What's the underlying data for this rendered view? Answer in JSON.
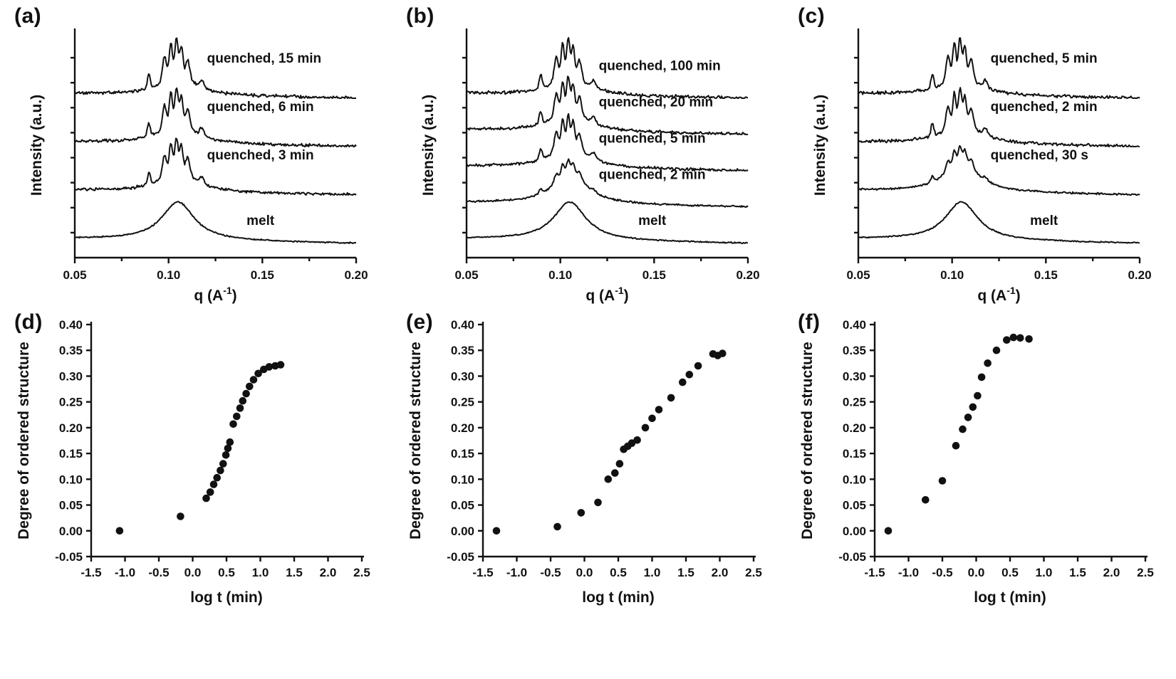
{
  "colors": {
    "foreground": "#111111",
    "background": "#ffffff"
  },
  "chart_data": [
    {
      "type": "line",
      "panel": "(a)",
      "panel_id": "a",
      "xlabel": "q (A^-1)",
      "xlabel_parts": [
        "q (A",
        "-1",
        ")"
      ],
      "ylabel": "Intensity (a.u.)",
      "xlim": [
        0.05,
        0.2
      ],
      "x_ticks": [
        "0.05",
        "0.10",
        "0.15",
        "0.20"
      ],
      "peak_center_q": 0.105,
      "series": [
        {
          "name": "quenched, 15 min",
          "profile": "sharp-peaks",
          "sharpness": 1.0
        },
        {
          "name": "quenched, 6 min",
          "profile": "sharp-peaks",
          "sharpness": 0.92
        },
        {
          "name": "quenched, 3 min",
          "profile": "sharp-peaks",
          "sharpness": 0.85
        },
        {
          "name": "melt",
          "profile": "broad-peak",
          "sharpness": 0
        }
      ]
    },
    {
      "type": "line",
      "panel": "(b)",
      "panel_id": "b",
      "xlabel": "q (A^-1)",
      "xlabel_parts": [
        "q (A",
        "-1",
        ")"
      ],
      "ylabel": "Intensity (a.u.)",
      "xlim": [
        0.05,
        0.2
      ],
      "x_ticks": [
        "0.05",
        "0.10",
        "0.15",
        "0.20"
      ],
      "peak_center_q": 0.105,
      "series": [
        {
          "name": "quenched, 100 min",
          "profile": "sharp-peaks",
          "sharpness": 1.0
        },
        {
          "name": "quenched, 20 min",
          "profile": "sharp-peaks",
          "sharpness": 0.9
        },
        {
          "name": "quenched, 5 min",
          "profile": "sharp-peaks",
          "sharpness": 0.78
        },
        {
          "name": "quenched, 2 min",
          "profile": "weak-peaks",
          "sharpness": 0.32
        },
        {
          "name": "melt",
          "profile": "broad-peak",
          "sharpness": 0
        }
      ]
    },
    {
      "type": "line",
      "panel": "(c)",
      "panel_id": "c",
      "xlabel": "q (A^-1)",
      "xlabel_parts": [
        "q (A",
        "-1",
        ")"
      ],
      "ylabel": "Intensity (a.u.)",
      "xlim": [
        0.05,
        0.2
      ],
      "x_ticks": [
        "0.05",
        "0.10",
        "0.15",
        "0.20"
      ],
      "peak_center_q": 0.105,
      "series": [
        {
          "name": "quenched, 5 min",
          "profile": "sharp-peaks",
          "sharpness": 1.0
        },
        {
          "name": "quenched, 2 min",
          "profile": "sharp-peaks",
          "sharpness": 0.9
        },
        {
          "name": "quenched, 30 s",
          "profile": "weak-peaks",
          "sharpness": 0.42
        },
        {
          "name": "melt",
          "profile": "broad-peak",
          "sharpness": 0
        }
      ]
    },
    {
      "type": "scatter",
      "panel": "(d)",
      "panel_id": "d",
      "xlabel": "log t (min)",
      "ylabel": "Degree of ordered structure",
      "xlim": [
        -1.5,
        2.5
      ],
      "ylim": [
        -0.05,
        0.4
      ],
      "x_ticks": [
        "-1.5",
        "-1.0",
        "-0.5",
        "0.0",
        "0.5",
        "1.0",
        "1.5",
        "2.0",
        "2.5"
      ],
      "y_ticks": [
        "-0.05",
        "0.00",
        "0.05",
        "0.10",
        "0.15",
        "0.20",
        "0.25",
        "0.30",
        "0.35",
        "0.40"
      ],
      "x": [
        -1.08,
        -0.18,
        0.2,
        0.26,
        0.31,
        0.36,
        0.41,
        0.45,
        0.49,
        0.52,
        0.55,
        0.6,
        0.65,
        0.7,
        0.74,
        0.79,
        0.84,
        0.9,
        0.97,
        1.05,
        1.13,
        1.22,
        1.3
      ],
      "y": [
        0.0,
        0.028,
        0.063,
        0.075,
        0.09,
        0.103,
        0.117,
        0.13,
        0.147,
        0.16,
        0.172,
        0.207,
        0.222,
        0.238,
        0.252,
        0.266,
        0.28,
        0.293,
        0.305,
        0.313,
        0.318,
        0.32,
        0.322
      ]
    },
    {
      "type": "scatter",
      "panel": "(e)",
      "panel_id": "e",
      "xlabel": "log t (min)",
      "ylabel": "Degree of ordered structure",
      "xlim": [
        -1.5,
        2.5
      ],
      "ylim": [
        -0.05,
        0.4
      ],
      "x_ticks": [
        "-1.5",
        "-1.0",
        "-0.5",
        "0.0",
        "0.5",
        "1.0",
        "1.5",
        "2.0",
        "2.5"
      ],
      "y_ticks": [
        "-0.05",
        "0.00",
        "0.05",
        "0.10",
        "0.15",
        "0.20",
        "0.25",
        "0.30",
        "0.35",
        "0.40"
      ],
      "x": [
        -1.3,
        -0.4,
        -0.05,
        0.2,
        0.35,
        0.45,
        0.52,
        0.58,
        0.64,
        0.7,
        0.78,
        0.9,
        1.0,
        1.1,
        1.28,
        1.45,
        1.55,
        1.68,
        1.9,
        1.97,
        2.04
      ],
      "y": [
        0.0,
        0.008,
        0.035,
        0.055,
        0.1,
        0.112,
        0.13,
        0.158,
        0.164,
        0.17,
        0.176,
        0.2,
        0.218,
        0.235,
        0.258,
        0.288,
        0.303,
        0.32,
        0.343,
        0.34,
        0.344
      ]
    },
    {
      "type": "scatter",
      "panel": "(f)",
      "panel_id": "f",
      "xlabel": "log t (min)",
      "ylabel": "Degree of ordered structure",
      "xlim": [
        -1.5,
        2.5
      ],
      "ylim": [
        -0.05,
        0.4
      ],
      "x_ticks": [
        "-1.5",
        "-1.0",
        "-0.5",
        "0.0",
        "0.5",
        "1.0",
        "1.5",
        "2.0",
        "2.5"
      ],
      "y_ticks": [
        "-0.05",
        "0.00",
        "0.05",
        "0.10",
        "0.15",
        "0.20",
        "0.25",
        "0.30",
        "0.35",
        "0.40"
      ],
      "x": [
        -1.3,
        -0.75,
        -0.5,
        -0.3,
        -0.2,
        -0.12,
        -0.05,
        0.02,
        0.08,
        0.17,
        0.3,
        0.45,
        0.55,
        0.65,
        0.78
      ],
      "y": [
        0.0,
        0.06,
        0.097,
        0.165,
        0.197,
        0.22,
        0.24,
        0.262,
        0.298,
        0.325,
        0.35,
        0.37,
        0.375,
        0.374,
        0.372
      ]
    }
  ]
}
